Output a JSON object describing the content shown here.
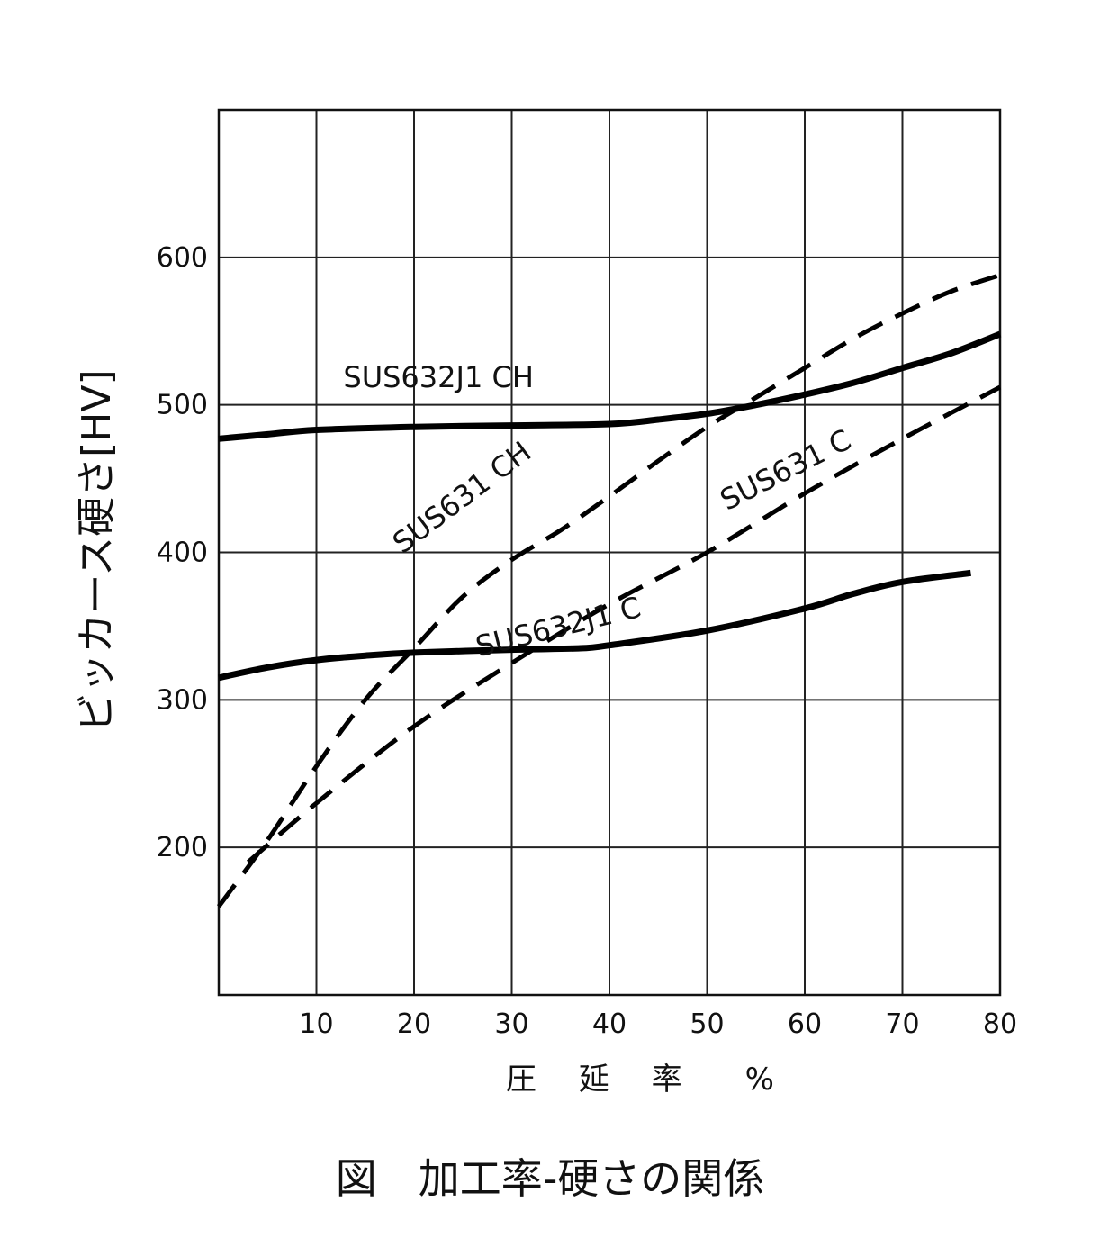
{
  "caption": "図　加工率-硬さの関係",
  "chart_data": {
    "type": "line",
    "title": "",
    "xlabel": "圧 延 率　%",
    "ylabel": "ビッカース硬さ[HV]",
    "xlim": [
      0,
      80
    ],
    "ylim": [
      100,
      700
    ],
    "xticks": [
      10,
      20,
      30,
      40,
      50,
      60,
      70,
      80
    ],
    "yticks": [
      200,
      300,
      400,
      500,
      600
    ],
    "grid": true,
    "series": [
      {
        "name": "SUS632J1 CH",
        "style": "solid",
        "x": [
          0,
          5,
          10,
          20,
          30,
          40,
          45,
          50,
          55,
          60,
          65,
          70,
          75,
          80
        ],
        "y": [
          477,
          480,
          483,
          485,
          486,
          487,
          490,
          494,
          500,
          507,
          515,
          525,
          535,
          548
        ]
      },
      {
        "name": "SUS632J1 C",
        "style": "solid",
        "x": [
          0,
          5,
          10,
          15,
          20,
          30,
          37,
          40,
          50,
          60,
          65,
          70,
          77
        ],
        "y": [
          315,
          322,
          327,
          330,
          332,
          334,
          335,
          337,
          347,
          362,
          372,
          380,
          386
        ]
      },
      {
        "name": "SUS631 CH",
        "style": "dashed",
        "x": [
          0,
          5,
          10,
          15,
          20,
          25,
          30,
          35,
          40,
          45,
          50,
          55,
          60,
          65,
          70,
          75,
          80
        ],
        "y": [
          160,
          205,
          255,
          300,
          335,
          370,
          395,
          415,
          438,
          462,
          485,
          505,
          525,
          545,
          562,
          577,
          588
        ]
      },
      {
        "name": "SUS631 C",
        "style": "dashed",
        "x": [
          3,
          10,
          20,
          30,
          40,
          50,
          60,
          70,
          80
        ],
        "y": [
          190,
          230,
          282,
          325,
          365,
          400,
          440,
          477,
          512
        ]
      }
    ]
  }
}
